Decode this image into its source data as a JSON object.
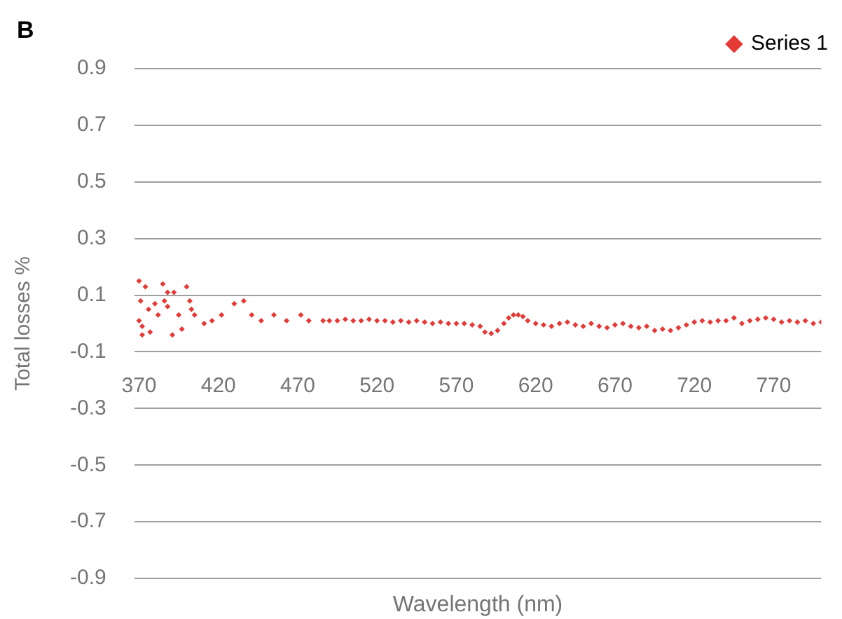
{
  "chart_data": {
    "type": "scatter",
    "title": "B",
    "xlabel": "Wavelength (nm)",
    "ylabel": "Total losses %",
    "xlim": [
      367,
      800
    ],
    "xticks": [
      370,
      420,
      470,
      520,
      570,
      620,
      670,
      720,
      770
    ],
    "ylim": [
      -0.9,
      0.9
    ],
    "yticks": [
      -0.9,
      -0.7,
      -0.5,
      -0.3,
      -0.1,
      0.1,
      0.3,
      0.5,
      0.7,
      0.9
    ],
    "grid": "y",
    "legend": "top right",
    "marker": "diamond",
    "series": [
      {
        "name": "Series 1",
        "color": "#e53935",
        "x": [
          370,
          374,
          385,
          392,
          388,
          400,
          371,
          380,
          386,
          370,
          372,
          372,
          377,
          391,
          397,
          382,
          376,
          388,
          395,
          402,
          403,
          405,
          411,
          416,
          422,
          430,
          436,
          441,
          447,
          455,
          463,
          472,
          477,
          486,
          490,
          495,
          500,
          505,
          510,
          515,
          520,
          525,
          530,
          535,
          540,
          545,
          550,
          555,
          560,
          565,
          570,
          575,
          580,
          585,
          588,
          592,
          596,
          600,
          603,
          606,
          609,
          612,
          615,
          620,
          625,
          630,
          635,
          640,
          645,
          650,
          655,
          660,
          665,
          670,
          675,
          680,
          685,
          690,
          695,
          700,
          705,
          710,
          715,
          720,
          725,
          730,
          735,
          740,
          745,
          750,
          755,
          760,
          765,
          770,
          775,
          780,
          785,
          790,
          795,
          800
        ],
        "values": [
          0.15,
          0.13,
          0.14,
          0.11,
          0.11,
          0.13,
          0.08,
          0.07,
          0.08,
          0.01,
          -0.01,
          -0.04,
          -0.03,
          -0.04,
          -0.02,
          0.03,
          0.05,
          0.06,
          0.03,
          0.08,
          0.05,
          0.03,
          0.0,
          0.01,
          0.03,
          0.07,
          0.08,
          0.03,
          0.01,
          0.03,
          0.01,
          0.03,
          0.01,
          0.01,
          0.01,
          0.01,
          0.015,
          0.01,
          0.01,
          0.015,
          0.01,
          0.01,
          0.005,
          0.01,
          0.005,
          0.01,
          0.005,
          0.0,
          0.005,
          0.0,
          0.0,
          0.0,
          -0.005,
          -0.01,
          -0.03,
          -0.035,
          -0.025,
          0.0,
          0.02,
          0.03,
          0.03,
          0.025,
          0.01,
          0.0,
          -0.005,
          -0.01,
          0.0,
          0.005,
          -0.005,
          -0.01,
          0.0,
          -0.01,
          -0.015,
          -0.005,
          0.0,
          -0.01,
          -0.015,
          -0.01,
          -0.025,
          -0.02,
          -0.025,
          -0.015,
          -0.005,
          0.005,
          0.01,
          0.005,
          0.01,
          0.01,
          0.02,
          0.0,
          0.01,
          0.015,
          0.02,
          0.015,
          0.005,
          0.01,
          0.005,
          0.01,
          0.0,
          0.005
        ]
      }
    ]
  }
}
